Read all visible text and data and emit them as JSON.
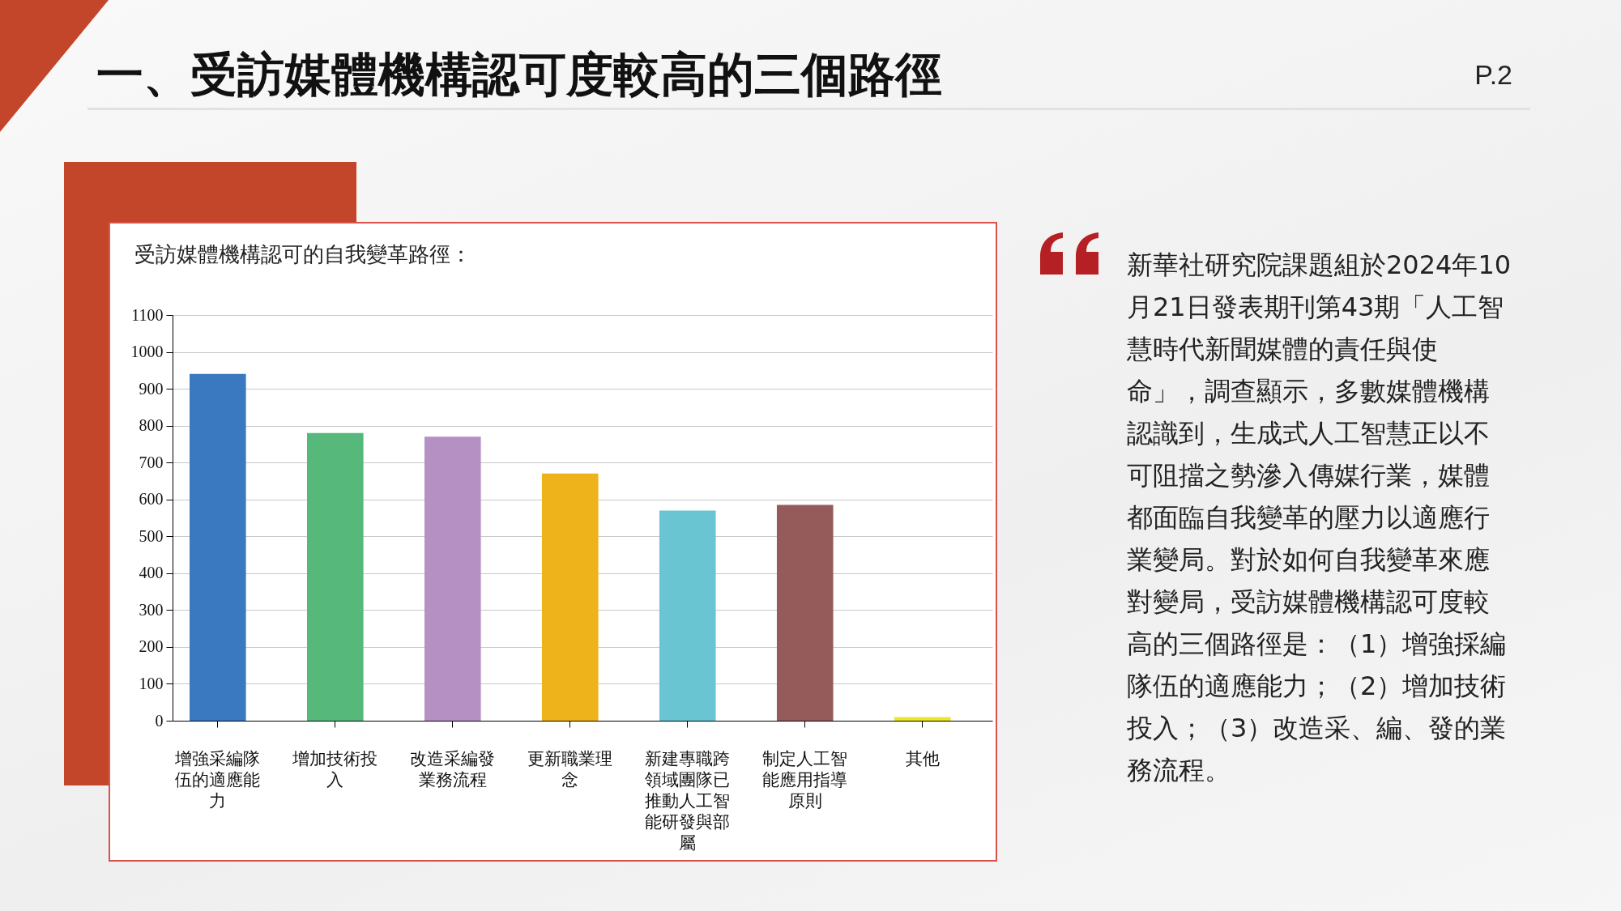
{
  "chart_data": {
    "type": "bar",
    "title": "一、受訪媒體機構認可度較高的三個路徑",
    "subtitle": "受訪媒體機構認可的自我變革路徑：",
    "categories": [
      "增強采編隊伍的適應能力",
      "增加技術投入",
      "改造采編發業務流程",
      "更新職業理念",
      "新建專職跨領域團隊已推動人工智能研發與部屬",
      "制定人工智能應用指導原則",
      "其他"
    ],
    "values": [
      940,
      780,
      770,
      670,
      570,
      585,
      10
    ],
    "colors": [
      "#3a78bf",
      "#56b87b",
      "#b590c3",
      "#eeb31b",
      "#6ac5d3",
      "#955b5a",
      "#ebe62e"
    ],
    "ylim": [
      0,
      1100
    ],
    "yticks": [
      0,
      100,
      200,
      300,
      400,
      500,
      600,
      700,
      800,
      900,
      1000,
      1100
    ],
    "grid": "y",
    "annotations": [
      "P.2",
      "新華社研究院課題組於2024年10月21日發表期刊第43期「人工智慧時代新聞媒體的責任與使命」，調查顯示，多數媒體機構認識到，生成式人工智慧正以不可阻擋之勢滲入傳媒行業，媒體都面臨自我變革的壓力以適應行業變局。對於如何自我變革來應對變局，受訪媒體機構認可度較高的三個路徑是：（1）增強採編隊伍的適應能力；（2）增加技術投入；（3）改造采、編、發的業務流程。"
    ]
  }
}
